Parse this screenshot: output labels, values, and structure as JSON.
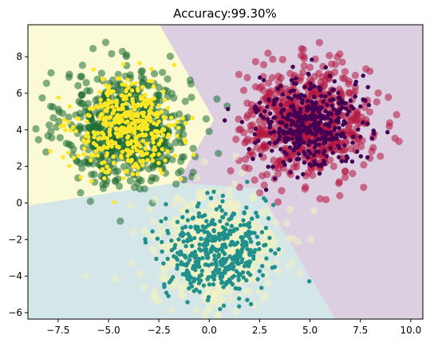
{
  "chart_data": {
    "type": "scatter",
    "title": "Accuracy:99.30%",
    "xlabel": "",
    "ylabel": "",
    "xlim": [
      -9,
      10.6
    ],
    "ylim": [
      -6.35,
      9.75
    ],
    "x_ticks": [
      -7.5,
      -5.0,
      -2.5,
      0.0,
      2.5,
      5.0,
      7.5,
      10.0
    ],
    "x_tick_labels": [
      "−7.5",
      "−5.0",
      "−2.5",
      "0.0",
      "2.5",
      "5.0",
      "7.5",
      "10.0"
    ],
    "y_ticks": [
      -6,
      -4,
      -2,
      0,
      2,
      4,
      6,
      8
    ],
    "y_tick_labels": [
      "−6",
      "−4",
      "−2",
      "0",
      "2",
      "4",
      "6",
      "8"
    ],
    "grid": false,
    "legend": "none",
    "decision_regions": [
      {
        "class": "top-left",
        "color": "#fafbd4",
        "polygon": [
          [
            -9,
            9.75
          ],
          [
            -2.45,
            9.75
          ],
          [
            0.25,
            4.55
          ],
          [
            -1.6,
            1.1
          ],
          [
            -9,
            -0.15
          ]
        ]
      },
      {
        "class": "right",
        "color": "#dccfe2",
        "polygon": [
          [
            -2.45,
            9.75
          ],
          [
            10.6,
            9.75
          ],
          [
            10.6,
            -6.35
          ],
          [
            6.25,
            -6.35
          ],
          [
            2.4,
            0.8
          ],
          [
            -1.6,
            1.1
          ],
          [
            0.25,
            4.55
          ]
        ]
      },
      {
        "class": "bottom",
        "color": "#d4e6e8",
        "polygon": [
          [
            -9,
            -0.15
          ],
          [
            -1.6,
            1.1
          ],
          [
            2.4,
            0.8
          ],
          [
            6.25,
            -6.35
          ],
          [
            -9,
            -6.35
          ]
        ]
      }
    ],
    "series": [
      {
        "role": "true-labels",
        "cluster": "top-left",
        "color": "#1e6b35",
        "center": [
          -4.1,
          4.1
        ],
        "std": 1.55,
        "count": 650
      },
      {
        "role": "true-labels",
        "cluster": "right",
        "color": "#b5163f",
        "center": [
          4.9,
          4.4
        ],
        "std": 1.55,
        "count": 650
      },
      {
        "role": "true-labels",
        "cluster": "bottom",
        "color": "#f1f3c1",
        "center": [
          0.3,
          -2.6
        ],
        "std": 1.55,
        "count": 650
      },
      {
        "role": "predictions",
        "cluster": "top-left",
        "color": "#fde725",
        "center": [
          -4.1,
          4.1
        ],
        "std": 1.25,
        "count": 420
      },
      {
        "role": "predictions",
        "cluster": "right",
        "color": "#440154",
        "center": [
          4.9,
          4.4
        ],
        "std": 1.25,
        "count": 420
      },
      {
        "role": "predictions",
        "cluster": "bottom",
        "color": "#21908d",
        "center": [
          0.3,
          -2.6
        ],
        "std": 1.25,
        "count": 420
      }
    ]
  }
}
